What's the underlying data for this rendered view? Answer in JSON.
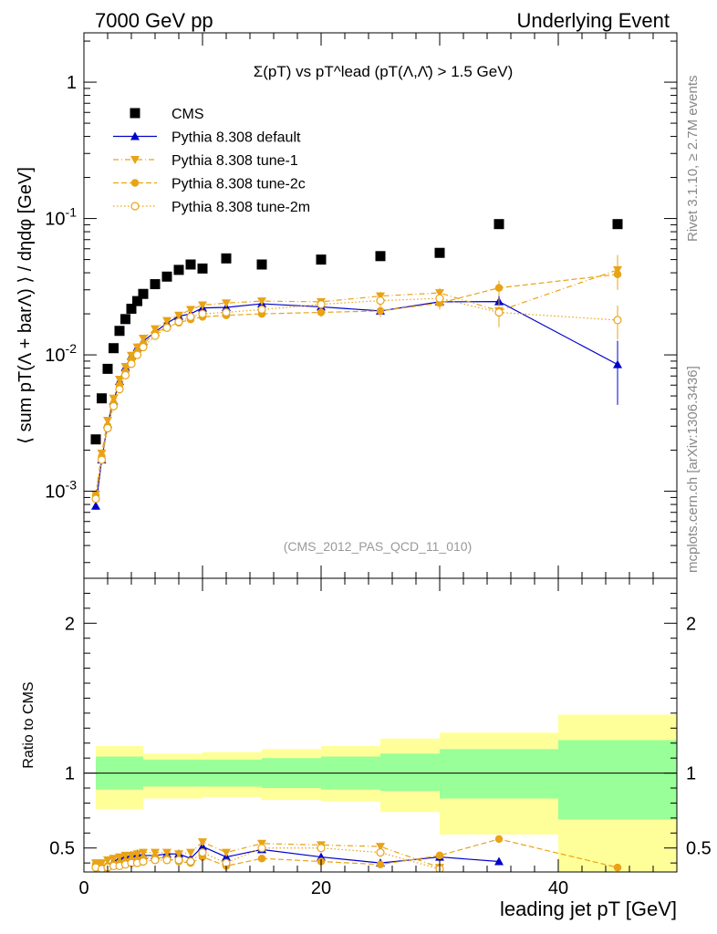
{
  "header": {
    "left": "7000 GeV pp",
    "right": "Underlying Event"
  },
  "side_labels": {
    "rivet": "Rivet 3.1.10, ≥ 2.7M events",
    "mcplots": "mcplots.cern.ch [arXiv:1306.3436]"
  },
  "chart_data": [
    {
      "type": "scatter",
      "title": "Σ(pT) vs pT^lead (pT(Λ,Λ̄) > 1.5 GeV)",
      "analysis_label": "(CMS_2012_PAS_QCD_11_010)",
      "ylabel": "⟨ sum pT(Λ + barΛ) ⟩ / dηdφ [GeV]",
      "yscale": "log",
      "xlim": [
        0,
        50
      ],
      "ylim": [
        0.00023,
        2.3
      ],
      "ytick_labels": [
        "10^-3",
        "10^-2",
        "10^-1",
        "1"
      ],
      "legend_position": "top-left",
      "series": [
        {
          "name": "CMS",
          "color": "#000000",
          "marker": "square",
          "x": [
            1.0,
            1.5,
            2.0,
            2.5,
            3.0,
            3.5,
            4.0,
            4.5,
            5.0,
            6.0,
            7.0,
            8.0,
            9.0,
            10.0,
            12.0,
            15.0,
            20.0,
            25.0,
            30.0,
            35.0,
            45.0
          ],
          "y": [
            0.0024,
            0.0048,
            0.0079,
            0.0112,
            0.015,
            0.0183,
            0.0218,
            0.0248,
            0.028,
            0.033,
            0.0375,
            0.042,
            0.046,
            0.043,
            0.051,
            0.046,
            0.05,
            0.053,
            0.056,
            0.091,
            0.091
          ]
        },
        {
          "name": "Pythia 8.308 default",
          "color": "#0000cc",
          "marker": "triangle-up",
          "line": "solid",
          "x": [
            1.0,
            1.5,
            2.0,
            2.5,
            3.0,
            3.5,
            4.0,
            4.5,
            5.0,
            6.0,
            7.0,
            8.0,
            9.0,
            10.0,
            12.0,
            15.0,
            20.0,
            25.0,
            30.0,
            35.0,
            45.0
          ],
          "y": [
            0.00078,
            0.0017,
            0.0031,
            0.0046,
            0.0064,
            0.0081,
            0.0098,
            0.0113,
            0.0126,
            0.0147,
            0.0171,
            0.0192,
            0.02,
            0.0221,
            0.0223,
            0.0237,
            0.0225,
            0.021,
            0.0245,
            0.0246,
            0.0085
          ],
          "y_err": [
            5e-05,
            0.0001,
            0.0002,
            0.0003,
            0.0004,
            0.0005,
            0.0006,
            0.0006,
            0.0007,
            0.0008,
            0.0008,
            0.0009,
            0.0009,
            0.001,
            0.001,
            0.0012,
            0.0015,
            0.002,
            0.0025,
            0.003,
            0.0042
          ]
        },
        {
          "name": "Pythia 8.308 tune-1",
          "color": "#e8a317",
          "marker": "triangle-down",
          "line": "dash-dot",
          "x": [
            1.0,
            1.5,
            2.0,
            2.5,
            3.0,
            3.5,
            4.0,
            4.5,
            5.0,
            6.0,
            7.0,
            8.0,
            9.0,
            10.0,
            12.0,
            15.0,
            20.0,
            25.0,
            30.0,
            35.0,
            45.0
          ],
          "y": [
            0.00095,
            0.0019,
            0.0033,
            0.0048,
            0.0066,
            0.0082,
            0.0099,
            0.0114,
            0.0132,
            0.0155,
            0.0178,
            0.0195,
            0.0215,
            0.0232,
            0.024,
            0.0248,
            0.0245,
            0.027,
            0.0285,
            0.021,
            0.042
          ],
          "y_err": [
            5e-05,
            0.0001,
            0.0002,
            0.0003,
            0.0004,
            0.0005,
            0.0006,
            0.0006,
            0.0007,
            0.0008,
            0.0008,
            0.0009,
            0.0009,
            0.001,
            0.001,
            0.0012,
            0.0015,
            0.002,
            0.0025,
            0.005,
            0.012
          ]
        },
        {
          "name": "Pythia 8.308 tune-2c",
          "color": "#e8a317",
          "marker": "circle",
          "line": "dashed",
          "x": [
            1.0,
            1.5,
            2.0,
            2.5,
            3.0,
            3.5,
            4.0,
            4.5,
            5.0,
            6.0,
            7.0,
            8.0,
            9.0,
            10.0,
            12.0,
            15.0,
            20.0,
            25.0,
            30.0,
            35.0,
            45.0
          ],
          "y": [
            0.00093,
            0.0018,
            0.003,
            0.0044,
            0.006,
            0.0075,
            0.0092,
            0.0105,
            0.012,
            0.0145,
            0.016,
            0.0172,
            0.0182,
            0.019,
            0.0195,
            0.02,
            0.0205,
            0.021,
            0.024,
            0.031,
            0.039
          ],
          "y_err": [
            5e-05,
            0.0001,
            0.0002,
            0.0003,
            0.0004,
            0.0005,
            0.0006,
            0.0006,
            0.0007,
            0.0008,
            0.0008,
            0.0009,
            0.0009,
            0.001,
            0.001,
            0.0012,
            0.0015,
            0.002,
            0.0025,
            0.004,
            0.008
          ]
        },
        {
          "name": "Pythia 8.308 tune-2m",
          "color": "#e8a317",
          "marker": "circle-open",
          "line": "dotted",
          "x": [
            1.0,
            1.5,
            2.0,
            2.5,
            3.0,
            3.5,
            4.0,
            4.5,
            5.0,
            6.0,
            7.0,
            8.0,
            9.0,
            10.0,
            12.0,
            15.0,
            20.0,
            25.0,
            30.0,
            35.0,
            45.0
          ],
          "y": [
            0.00088,
            0.0017,
            0.0029,
            0.0042,
            0.0056,
            0.0071,
            0.0086,
            0.01,
            0.0114,
            0.0138,
            0.0158,
            0.0175,
            0.019,
            0.02,
            0.0205,
            0.0215,
            0.0235,
            0.025,
            0.026,
            0.0205,
            0.018
          ],
          "y_err": [
            5e-05,
            0.0001,
            0.0002,
            0.0003,
            0.0004,
            0.0005,
            0.0006,
            0.0006,
            0.0007,
            0.0008,
            0.0008,
            0.0009,
            0.0009,
            0.001,
            0.001,
            0.0012,
            0.0015,
            0.002,
            0.0025,
            0.004,
            0.005
          ]
        }
      ]
    },
    {
      "type": "scatter",
      "ylabel": "Ratio to CMS",
      "xlabel": "leading jet pT [GeV]",
      "xlim": [
        0,
        50
      ],
      "ylim": [
        0.34,
        2.3
      ],
      "xticks": [
        0,
        20,
        40
      ],
      "yticks": [
        0.5,
        1,
        2
      ],
      "bands": {
        "edges": [
          1,
          5,
          10,
          15,
          20,
          25,
          30,
          40,
          50
        ],
        "green_low": [
          0.89,
          0.91,
          0.91,
          0.9,
          0.89,
          0.88,
          0.83,
          0.69
        ],
        "green_high": [
          1.11,
          1.09,
          1.09,
          1.1,
          1.11,
          1.13,
          1.16,
          1.22
        ],
        "yellow_low": [
          0.76,
          0.83,
          0.84,
          0.82,
          0.81,
          0.74,
          0.59,
          0.32
        ],
        "yellow_high": [
          1.18,
          1.13,
          1.14,
          1.16,
          1.18,
          1.23,
          1.27,
          1.39
        ]
      },
      "series": [
        {
          "name": "Pythia 8.308 default",
          "color": "#0000cc",
          "marker": "triangle-up",
          "line": "solid",
          "x": [
            1.0,
            1.5,
            2.0,
            2.5,
            3.0,
            3.5,
            4.0,
            4.5,
            5.0,
            6.0,
            7.0,
            8.0,
            9.0,
            10.0,
            12.0,
            15.0,
            20.0,
            25.0,
            30.0,
            35.0
          ],
          "y": [
            0.32,
            0.35,
            0.39,
            0.41,
            0.43,
            0.44,
            0.45,
            0.46,
            0.45,
            0.45,
            0.46,
            0.46,
            0.43,
            0.51,
            0.44,
            0.49,
            0.44,
            0.4,
            0.44,
            0.41
          ]
        },
        {
          "name": "Pythia 8.308 tune-1",
          "color": "#e8a317",
          "marker": "triangle-down",
          "line": "dash-dot",
          "x": [
            1.0,
            1.5,
            2.0,
            2.5,
            3.0,
            3.5,
            4.0,
            4.5,
            5.0,
            6.0,
            7.0,
            8.0,
            9.0,
            10.0,
            12.0,
            15.0,
            20.0,
            25.0,
            30.0
          ],
          "y": [
            0.4,
            0.4,
            0.42,
            0.43,
            0.44,
            0.45,
            0.45,
            0.46,
            0.47,
            0.47,
            0.47,
            0.46,
            0.47,
            0.54,
            0.47,
            0.53,
            0.52,
            0.51,
            0.37
          ]
        },
        {
          "name": "Pythia 8.308 tune-2c",
          "color": "#e8a317",
          "marker": "circle",
          "line": "dashed",
          "x": [
            1.0,
            1.5,
            2.0,
            2.5,
            3.0,
            3.5,
            4.0,
            4.5,
            5.0,
            6.0,
            7.0,
            8.0,
            9.0,
            10.0,
            12.0,
            15.0,
            20.0,
            25.0,
            30.0,
            35.0,
            45.0
          ],
          "y": [
            0.39,
            0.37,
            0.38,
            0.39,
            0.4,
            0.41,
            0.42,
            0.42,
            0.43,
            0.44,
            0.43,
            0.41,
            0.4,
            0.44,
            0.38,
            0.43,
            0.41,
            0.39,
            0.45,
            0.56,
            0.37
          ]
        },
        {
          "name": "Pythia 8.308 tune-2m",
          "color": "#e8a317",
          "marker": "circle-open",
          "line": "dotted",
          "x": [
            1.0,
            1.5,
            2.0,
            2.5,
            3.0,
            3.5,
            4.0,
            4.5,
            5.0,
            6.0,
            7.0,
            8.0,
            9.0,
            10.0,
            12.0,
            15.0,
            20.0,
            25.0,
            30.0
          ],
          "y": [
            0.37,
            0.36,
            0.37,
            0.38,
            0.38,
            0.39,
            0.4,
            0.4,
            0.41,
            0.42,
            0.42,
            0.42,
            0.41,
            0.47,
            0.4,
            0.5,
            0.5,
            0.47,
            0.36
          ]
        }
      ]
    }
  ]
}
